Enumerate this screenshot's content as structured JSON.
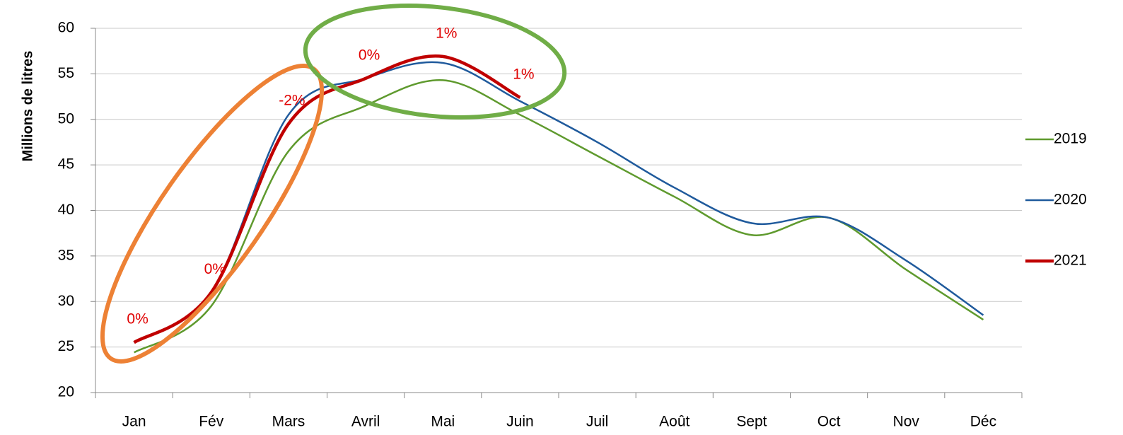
{
  "chart_data": {
    "type": "line",
    "y_label": "Millions de litres",
    "categories": [
      "Jan",
      "Fév",
      "Mars",
      "Avril",
      "Mai",
      "Juin",
      "Juil",
      "Août",
      "Sept",
      "Oct",
      "Nov",
      "Déc"
    ],
    "series": [
      {
        "name": "2019",
        "color": "#5f9a2e",
        "values": [
          24.4,
          29.5,
          46.5,
          51.5,
          54.3,
          50.5,
          46,
          41.5,
          37.3,
          39.2,
          33.5,
          28
        ]
      },
      {
        "name": "2020",
        "color": "#1f5a9c",
        "values": [
          25.5,
          31,
          50.5,
          54.5,
          56.2,
          52,
          47.5,
          42.5,
          38.6,
          39.2,
          34.5,
          28.5
        ]
      },
      {
        "name": "2021",
        "color": "#c00000",
        "values": [
          25.5,
          31,
          49.5,
          54.5,
          56.9,
          52.4,
          null,
          null,
          null,
          null,
          null,
          null
        ]
      }
    ],
    "annotations": [
      "0%",
      "0%",
      "-2%",
      "0%",
      "1%",
      "1%"
    ],
    "ylim": [
      20,
      60
    ],
    "yticks": [
      20,
      25,
      30,
      35,
      40,
      45,
      50,
      55,
      60
    ],
    "grid": true,
    "legend": "right"
  }
}
